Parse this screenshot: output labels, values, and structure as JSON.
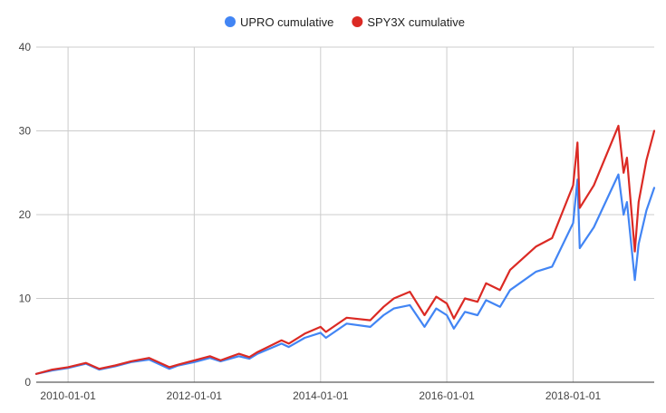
{
  "chart_data": {
    "type": "line",
    "title": "",
    "xlabel": "",
    "ylabel": "",
    "xlim": [
      "2009-07-01",
      "2019-04-15"
    ],
    "ylim": [
      0,
      40
    ],
    "yticks": [
      0,
      10,
      20,
      30,
      40
    ],
    "xticks": [
      "2010-01-01",
      "2012-01-01",
      "2014-01-01",
      "2016-01-01",
      "2018-01-01"
    ],
    "grid": true,
    "legend": "top-center",
    "series": [
      {
        "name": "UPRO cumulative",
        "color": "#4285f4",
        "points": [
          [
            "2009-07-01",
            1.0
          ],
          [
            "2009-10-01",
            1.4
          ],
          [
            "2010-01-01",
            1.7
          ],
          [
            "2010-04-15",
            2.2
          ],
          [
            "2010-07-01",
            1.5
          ],
          [
            "2010-10-01",
            1.9
          ],
          [
            "2011-01-01",
            2.4
          ],
          [
            "2011-04-15",
            2.7
          ],
          [
            "2011-08-10",
            1.6
          ],
          [
            "2011-10-01",
            2.0
          ],
          [
            "2012-01-01",
            2.4
          ],
          [
            "2012-04-01",
            2.9
          ],
          [
            "2012-06-01",
            2.5
          ],
          [
            "2012-09-15",
            3.1
          ],
          [
            "2012-11-15",
            2.8
          ],
          [
            "2013-01-01",
            3.4
          ],
          [
            "2013-05-20",
            4.6
          ],
          [
            "2013-07-01",
            4.2
          ],
          [
            "2013-10-01",
            5.3
          ],
          [
            "2014-01-01",
            5.9
          ],
          [
            "2014-02-01",
            5.3
          ],
          [
            "2014-06-01",
            7.0
          ],
          [
            "2014-10-15",
            6.6
          ],
          [
            "2014-12-31",
            8.0
          ],
          [
            "2015-03-01",
            8.8
          ],
          [
            "2015-06-01",
            9.2
          ],
          [
            "2015-08-25",
            6.6
          ],
          [
            "2015-11-01",
            8.8
          ],
          [
            "2016-01-01",
            8.0
          ],
          [
            "2016-02-11",
            6.4
          ],
          [
            "2016-04-15",
            8.4
          ],
          [
            "2016-06-27",
            8.0
          ],
          [
            "2016-08-15",
            9.8
          ],
          [
            "2016-11-04",
            9.0
          ],
          [
            "2017-01-01",
            11.0
          ],
          [
            "2017-06-01",
            13.2
          ],
          [
            "2017-09-01",
            13.8
          ],
          [
            "2018-01-01",
            19.0
          ],
          [
            "2018-01-26",
            24.2
          ],
          [
            "2018-02-08",
            16.0
          ],
          [
            "2018-05-01",
            18.5
          ],
          [
            "2018-09-20",
            24.8
          ],
          [
            "2018-10-20",
            20.0
          ],
          [
            "2018-11-08",
            21.5
          ],
          [
            "2018-12-24",
            12.2
          ],
          [
            "2019-01-15",
            16.5
          ],
          [
            "2019-03-01",
            20.5
          ],
          [
            "2019-04-15",
            23.2
          ]
        ]
      },
      {
        "name": "SPY3X cumulative",
        "color": "#db2a24",
        "points": [
          [
            "2009-07-01",
            1.0
          ],
          [
            "2009-10-01",
            1.5
          ],
          [
            "2010-01-01",
            1.8
          ],
          [
            "2010-04-15",
            2.3
          ],
          [
            "2010-07-01",
            1.6
          ],
          [
            "2010-10-01",
            2.0
          ],
          [
            "2011-01-01",
            2.5
          ],
          [
            "2011-04-15",
            2.9
          ],
          [
            "2011-08-10",
            1.8
          ],
          [
            "2011-10-01",
            2.1
          ],
          [
            "2012-01-01",
            2.6
          ],
          [
            "2012-04-01",
            3.1
          ],
          [
            "2012-06-01",
            2.6
          ],
          [
            "2012-09-15",
            3.4
          ],
          [
            "2012-11-15",
            3.0
          ],
          [
            "2013-01-01",
            3.6
          ],
          [
            "2013-05-20",
            5.0
          ],
          [
            "2013-07-01",
            4.6
          ],
          [
            "2013-10-01",
            5.8
          ],
          [
            "2014-01-01",
            6.6
          ],
          [
            "2014-02-01",
            6.0
          ],
          [
            "2014-06-01",
            7.7
          ],
          [
            "2014-10-15",
            7.4
          ],
          [
            "2014-12-31",
            9.0
          ],
          [
            "2015-03-01",
            10.0
          ],
          [
            "2015-06-01",
            10.8
          ],
          [
            "2015-08-25",
            8.0
          ],
          [
            "2015-11-01",
            10.2
          ],
          [
            "2016-01-01",
            9.4
          ],
          [
            "2016-02-11",
            7.6
          ],
          [
            "2016-04-15",
            10.0
          ],
          [
            "2016-06-27",
            9.6
          ],
          [
            "2016-08-15",
            11.8
          ],
          [
            "2016-11-04",
            11.0
          ],
          [
            "2017-01-01",
            13.4
          ],
          [
            "2017-06-01",
            16.2
          ],
          [
            "2017-09-01",
            17.2
          ],
          [
            "2018-01-01",
            23.5
          ],
          [
            "2018-01-26",
            28.6
          ],
          [
            "2018-02-08",
            20.8
          ],
          [
            "2018-05-01",
            23.5
          ],
          [
            "2018-09-20",
            30.6
          ],
          [
            "2018-10-20",
            25.0
          ],
          [
            "2018-11-08",
            26.8
          ],
          [
            "2018-12-24",
            15.6
          ],
          [
            "2019-01-15",
            21.5
          ],
          [
            "2019-03-01",
            26.5
          ],
          [
            "2019-04-15",
            30.0
          ]
        ]
      }
    ]
  }
}
